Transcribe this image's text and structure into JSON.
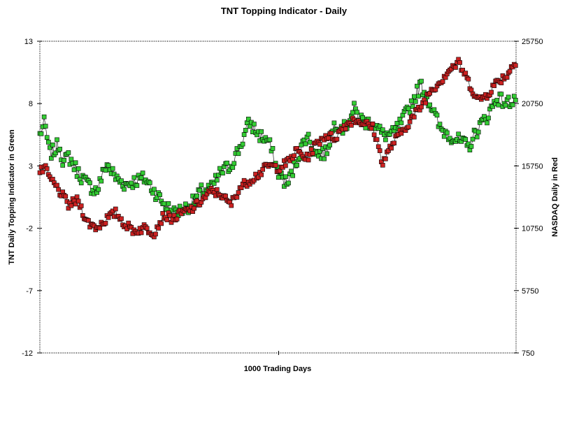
{
  "chart_data": {
    "type": "line",
    "title": "TNT Topping Indicator - Daily",
    "xlabel": "1000 Trading Days",
    "ylabel_left": "TNT Daily Topping Indicator in Green",
    "ylabel_right": "NASDAQ Daily in Red",
    "left_axis": {
      "ylim": [
        -12,
        13
      ],
      "ticks": [
        "13",
        "8",
        "3",
        "-2",
        "-7",
        "-12"
      ]
    },
    "right_axis": {
      "ylim": [
        750,
        25750
      ],
      "ticks": [
        "25750",
        "20750",
        "15750",
        "10750",
        "5750",
        "750"
      ]
    },
    "x_range": [
      0,
      1000
    ],
    "grid": false,
    "series": [
      {
        "name": "TNT Daily Topping Indicator",
        "axis": "left",
        "color": "#33cc33",
        "marker": "square",
        "x": [
          0,
          10,
          20,
          30,
          40,
          50,
          60,
          80,
          100,
          120,
          140,
          160,
          180,
          200,
          220,
          240,
          260,
          280,
          300,
          320,
          340,
          360,
          380,
          400,
          420,
          440,
          460,
          480,
          500,
          520,
          540,
          560,
          580,
          600,
          620,
          640,
          660,
          680,
          700,
          720,
          740,
          760,
          780,
          800,
          820,
          840,
          860,
          880,
          900,
          920,
          940,
          960,
          980,
          1000
        ],
        "values": [
          5.5,
          6.5,
          4.0,
          4.2,
          4.8,
          3.2,
          3.8,
          2.5,
          1.5,
          1.0,
          3.2,
          2.0,
          1.5,
          1.8,
          2.0,
          1.0,
          0.0,
          -0.8,
          -0.5,
          0.0,
          1.0,
          1.2,
          2.5,
          3.0,
          4.5,
          6.5,
          5.5,
          5.0,
          2.5,
          1.5,
          3.5,
          5.5,
          4.0,
          4.0,
          6.5,
          6.0,
          7.5,
          6.5,
          6.5,
          5.5,
          5.5,
          6.5,
          8.0,
          9.5,
          8.0,
          6.0,
          5.5,
          5.0,
          4.5,
          6.0,
          7.0,
          8.5,
          8.0,
          8.5
        ]
      },
      {
        "name": "NASDAQ Daily",
        "axis": "right",
        "color": "#cc2222",
        "marker": "square",
        "x": [
          0,
          10,
          20,
          40,
          60,
          80,
          100,
          120,
          140,
          160,
          180,
          200,
          220,
          240,
          260,
          280,
          300,
          320,
          340,
          360,
          380,
          400,
          420,
          440,
          460,
          480,
          500,
          520,
          540,
          560,
          580,
          600,
          620,
          640,
          660,
          680,
          700,
          720,
          740,
          760,
          780,
          800,
          820,
          840,
          860,
          880,
          900,
          920,
          940,
          960,
          980,
          1000
        ],
        "values": [
          15200,
          15600,
          14800,
          13800,
          12600,
          13000,
          11200,
          10800,
          11500,
          12000,
          11000,
          10500,
          10800,
          10400,
          11800,
          11500,
          12000,
          12300,
          13000,
          13700,
          13500,
          12600,
          14000,
          14600,
          15100,
          15800,
          15600,
          16000,
          17000,
          16300,
          17500,
          18200,
          18000,
          19000,
          19500,
          19200,
          18800,
          16000,
          17500,
          18500,
          19500,
          20500,
          21800,
          22500,
          23500,
          24000,
          22500,
          21000,
          21500,
          22500,
          23000,
          24200
        ]
      }
    ]
  }
}
